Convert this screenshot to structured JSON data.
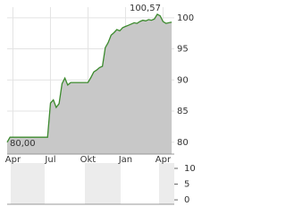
{
  "chart_data": [
    {
      "type": "area",
      "color": "#3c8a2e",
      "fill": "#c8c8c8",
      "grid": true,
      "categories": [
        null,
        null,
        "Apr",
        null,
        null,
        null,
        null,
        null,
        null,
        null,
        null,
        null,
        null,
        null,
        null,
        "Jul",
        null,
        null,
        null,
        null,
        null,
        null,
        null,
        null,
        null,
        null,
        null,
        null,
        "Okt",
        null,
        null,
        null,
        null,
        null,
        null,
        null,
        null,
        null,
        null,
        null,
        null,
        "Jan",
        null,
        null,
        null,
        null,
        null,
        null,
        null,
        null,
        null,
        null,
        null,
        null,
        "Apr",
        null,
        null,
        null
      ],
      "values": [
        80.0,
        80.8,
        80.8,
        80.8,
        80.8,
        80.8,
        80.8,
        80.8,
        80.8,
        80.8,
        80.8,
        80.8,
        80.8,
        80.8,
        80.8,
        86.3,
        86.8,
        85.6,
        86.2,
        89.4,
        90.3,
        89.2,
        89.6,
        89.6,
        89.6,
        89.6,
        89.6,
        89.6,
        89.6,
        90.4,
        91.3,
        91.6,
        92.0,
        92.2,
        95.2,
        96.0,
        97.2,
        97.6,
        98.1,
        97.9,
        98.4,
        98.6,
        98.8,
        99.0,
        99.2,
        99.1,
        99.4,
        99.6,
        99.5,
        99.7,
        99.6,
        99.8,
        100.57,
        100.3,
        99.4,
        99.1,
        99.2,
        99.3
      ],
      "value_labels": [
        "80,00",
        null,
        null,
        null,
        null,
        null,
        null,
        null,
        null,
        null,
        null,
        null,
        null,
        null,
        null,
        null,
        null,
        null,
        null,
        null,
        null,
        null,
        null,
        null,
        null,
        null,
        null,
        null,
        null,
        null,
        null,
        null,
        null,
        null,
        null,
        null,
        null,
        null,
        null,
        null,
        null,
        null,
        null,
        null,
        null,
        null,
        null,
        null,
        null,
        null,
        null,
        null,
        "100,57",
        null,
        null,
        null,
        null,
        null
      ],
      "ylim": [
        78.1,
        101.7
      ],
      "yticks": [
        80,
        85,
        90,
        95,
        100
      ]
    },
    {
      "type": "bar",
      "ylim": [
        -1.4,
        11.7
      ],
      "yticks": [
        0,
        5,
        10
      ]
    }
  ]
}
